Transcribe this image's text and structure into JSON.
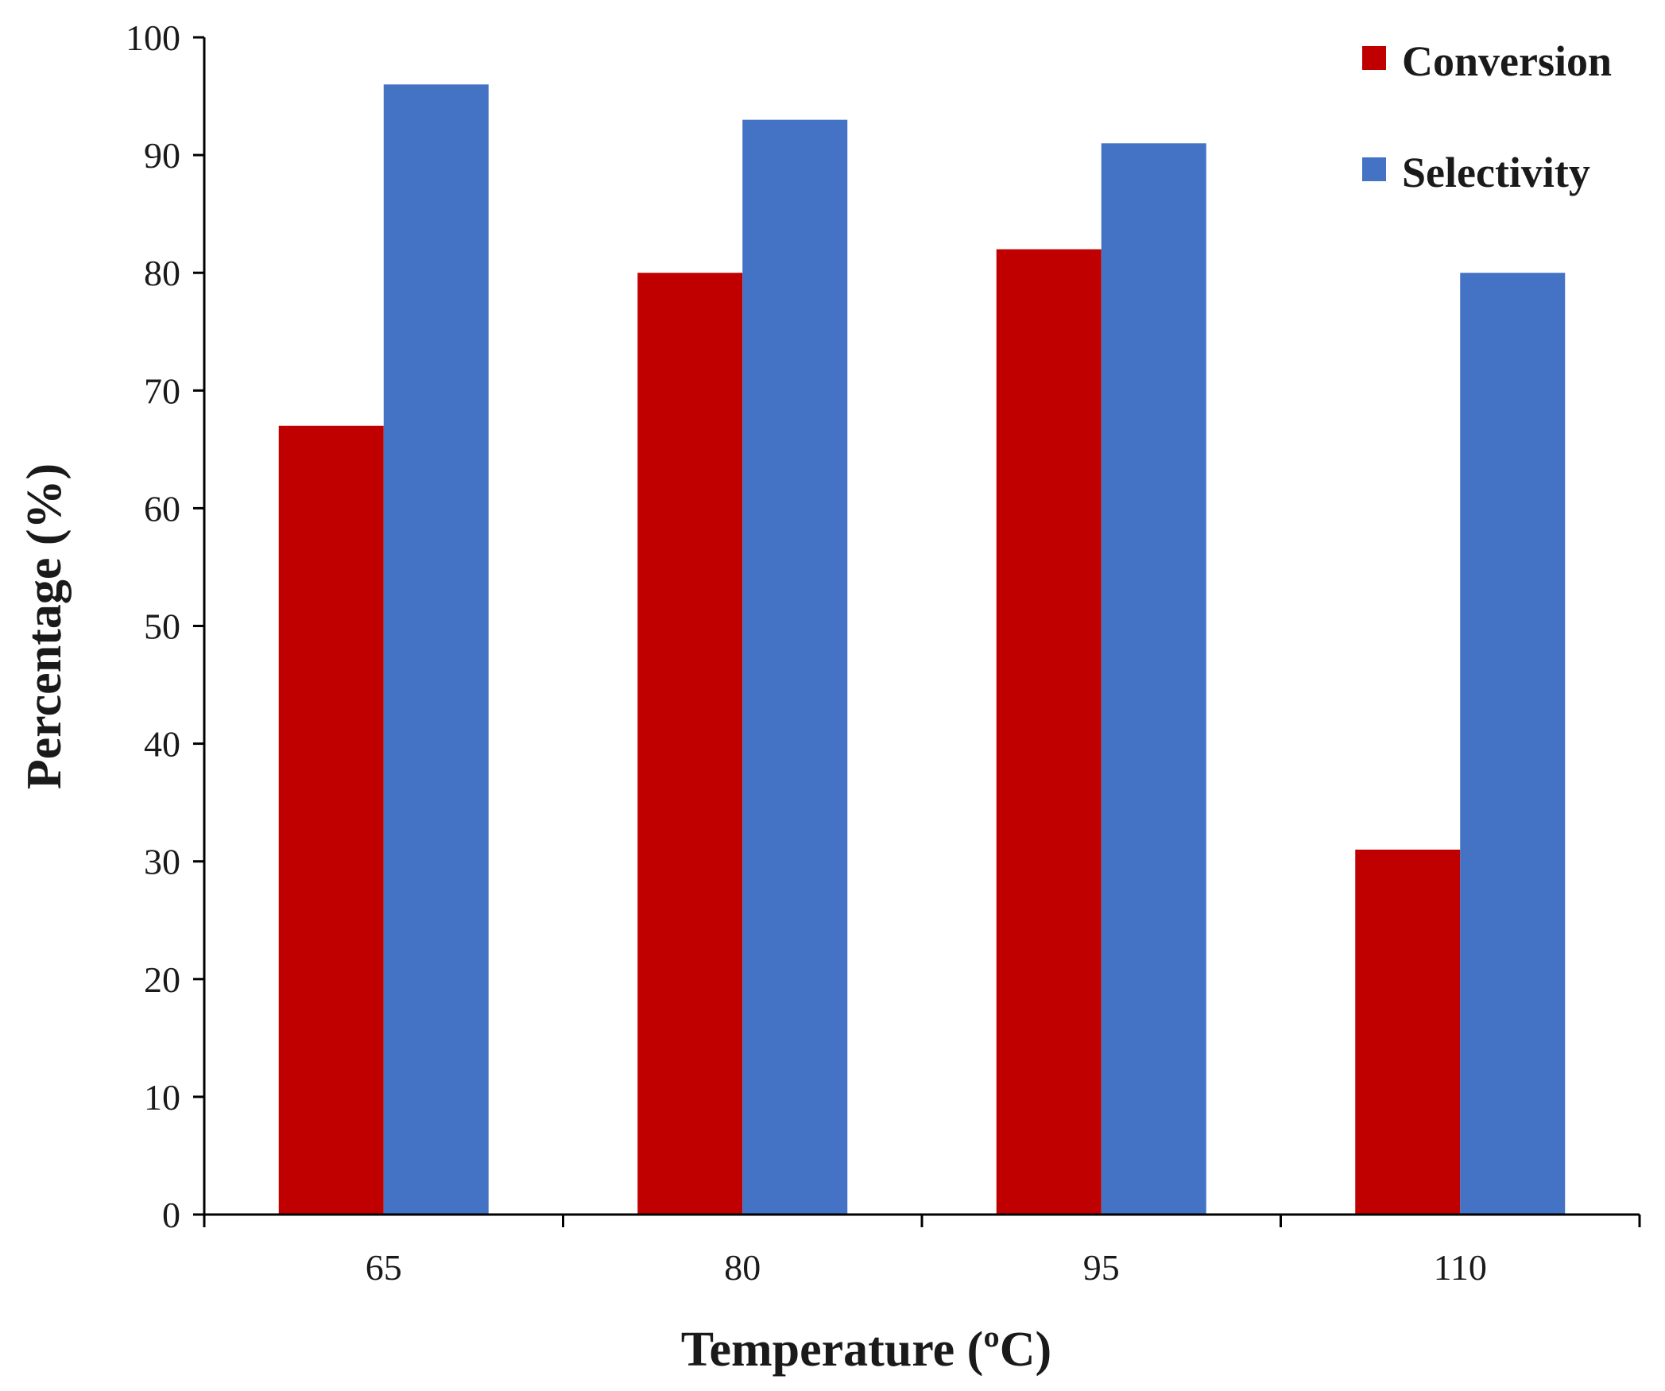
{
  "chart_data": {
    "type": "bar",
    "title": "",
    "xlabel": "Temperature (ºC)",
    "ylabel": "Percentage (%)",
    "categories": [
      "65",
      "80",
      "95",
      "110"
    ],
    "ylim": [
      0,
      100
    ],
    "yticks": [
      0,
      10,
      20,
      30,
      40,
      50,
      60,
      70,
      80,
      90,
      100
    ],
    "grid": false,
    "legend_position": "top-right",
    "series": [
      {
        "name": "Conversion",
        "color": "#c00000",
        "values": [
          67,
          80,
          82,
          31
        ]
      },
      {
        "name": "Selectivity",
        "color": "#4472c4",
        "values": [
          96,
          93,
          91,
          80
        ]
      }
    ]
  }
}
